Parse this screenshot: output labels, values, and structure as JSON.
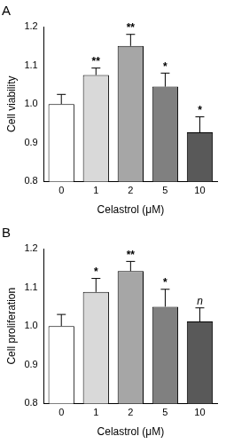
{
  "chart_data": [
    {
      "type": "bar",
      "title": "A",
      "categories": [
        "0",
        "1",
        "2",
        "5",
        "10"
      ],
      "values": [
        1.0,
        1.075,
        1.15,
        1.045,
        0.927
      ],
      "errors": [
        0.025,
        0.018,
        0.03,
        0.035,
        0.04
      ],
      "annotations": [
        null,
        "**",
        "**",
        "*",
        "*"
      ],
      "colors": [
        "#ffffff",
        "#d9d9d9",
        "#a6a6a6",
        "#808080",
        "#595959"
      ],
      "xlabel": "Celastrol (μM)",
      "ylabel": "Cell viability",
      "ylim": [
        0.8,
        1.2
      ],
      "yticks": [
        0.8,
        0.9,
        {
          "value": 1,
          "label": "1.0"
        },
        1.1,
        1.2
      ],
      "grid": false
    },
    {
      "type": "bar",
      "title": "B",
      "categories": [
        "0",
        "1",
        "2",
        "5",
        "10"
      ],
      "values": [
        1.0,
        1.088,
        1.142,
        1.05,
        1.012
      ],
      "errors": [
        0.03,
        0.035,
        0.025,
        0.045,
        0.035
      ],
      "annotations": [
        null,
        "*",
        "**",
        "*",
        "n"
      ],
      "colors": [
        "#ffffff",
        "#d9d9d9",
        "#a6a6a6",
        "#808080",
        "#595959"
      ],
      "xlabel": "Celastrol (μM)",
      "ylabel": "Cell proliferation",
      "ylim": [
        0.8,
        1.2
      ],
      "yticks": [
        0.8,
        0.9,
        {
          "value": 1,
          "label": "1.0"
        },
        1.1,
        1.2
      ],
      "grid": false
    }
  ]
}
